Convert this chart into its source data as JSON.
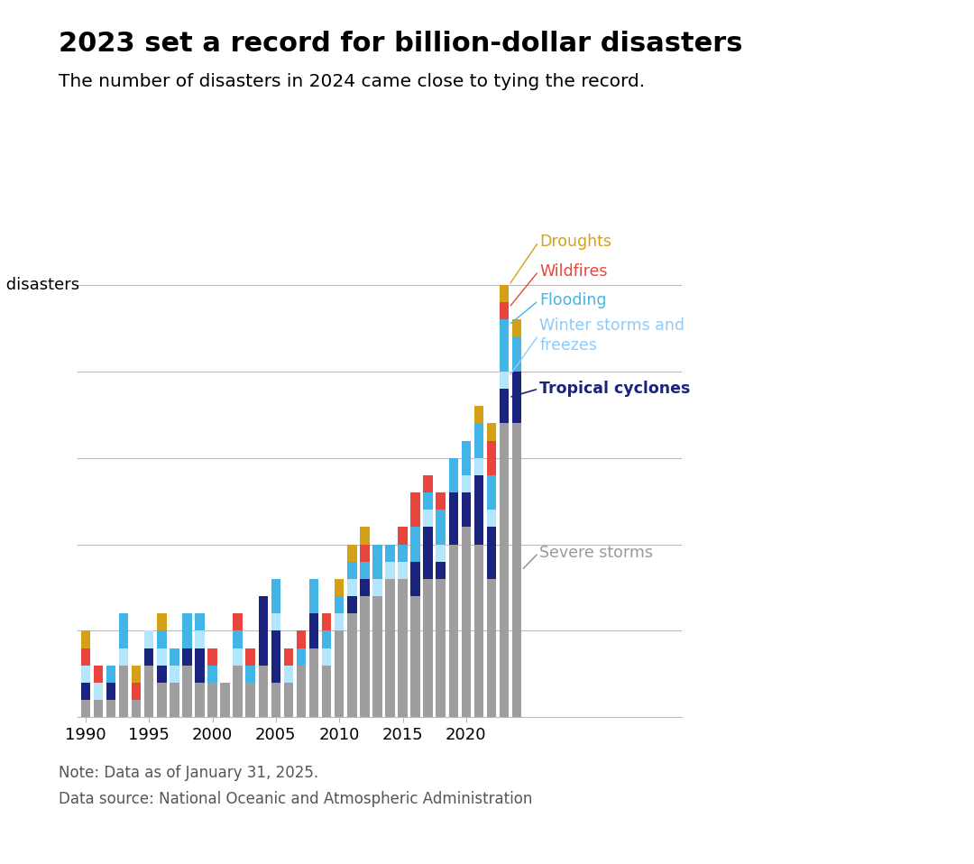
{
  "years": [
    1990,
    1991,
    1992,
    1993,
    1994,
    1995,
    1996,
    1997,
    1998,
    1999,
    2000,
    2001,
    2002,
    2003,
    2004,
    2005,
    2006,
    2007,
    2008,
    2009,
    2010,
    2011,
    2012,
    2013,
    2014,
    2015,
    2016,
    2017,
    2018,
    2019,
    2020,
    2021,
    2022,
    2023,
    2024
  ],
  "severe_storms": [
    1,
    1,
    1,
    3,
    1,
    3,
    2,
    2,
    3,
    2,
    2,
    2,
    3,
    2,
    3,
    2,
    2,
    3,
    4,
    3,
    5,
    6,
    7,
    7,
    8,
    8,
    7,
    8,
    8,
    10,
    11,
    10,
    8,
    17,
    17
  ],
  "tropical_cyclones": [
    1,
    0,
    1,
    0,
    0,
    1,
    1,
    0,
    1,
    2,
    0,
    0,
    0,
    0,
    4,
    3,
    0,
    0,
    2,
    0,
    0,
    1,
    1,
    0,
    0,
    0,
    2,
    3,
    1,
    3,
    2,
    4,
    3,
    2,
    3
  ],
  "winter_storms": [
    1,
    1,
    0,
    1,
    0,
    1,
    1,
    1,
    0,
    1,
    0,
    0,
    1,
    0,
    0,
    1,
    1,
    0,
    0,
    1,
    1,
    1,
    0,
    1,
    1,
    1,
    0,
    1,
    1,
    0,
    1,
    1,
    1,
    1,
    0
  ],
  "flooding": [
    0,
    0,
    1,
    2,
    0,
    0,
    1,
    1,
    2,
    1,
    1,
    0,
    1,
    1,
    0,
    2,
    0,
    1,
    2,
    1,
    1,
    1,
    1,
    2,
    1,
    1,
    2,
    1,
    2,
    2,
    2,
    2,
    2,
    3,
    2
  ],
  "wildfires": [
    1,
    1,
    0,
    0,
    1,
    0,
    0,
    0,
    0,
    0,
    1,
    0,
    1,
    1,
    0,
    0,
    1,
    1,
    0,
    1,
    0,
    0,
    1,
    0,
    0,
    1,
    2,
    1,
    1,
    0,
    0,
    0,
    2,
    1,
    0
  ],
  "droughts": [
    1,
    0,
    0,
    0,
    1,
    0,
    1,
    0,
    0,
    0,
    0,
    0,
    0,
    0,
    0,
    0,
    0,
    0,
    0,
    0,
    1,
    1,
    1,
    0,
    0,
    0,
    0,
    0,
    0,
    0,
    0,
    1,
    1,
    1,
    1
  ],
  "colors": {
    "severe_storms": "#9e9e9e",
    "tropical_cyclones": "#1a237e",
    "winter_storms": "#b3e5fc",
    "flooding": "#42b4e6",
    "wildfires": "#e8463c",
    "droughts": "#d4a017"
  },
  "title": "2023 set a record for billion-dollar disasters",
  "subtitle": "The number of disasters in 2024 came close to tying the record.",
  "note": "Note: Data as of January 31, 2025.",
  "source": "Data source: National Oceanic and Atmospheric Administration"
}
